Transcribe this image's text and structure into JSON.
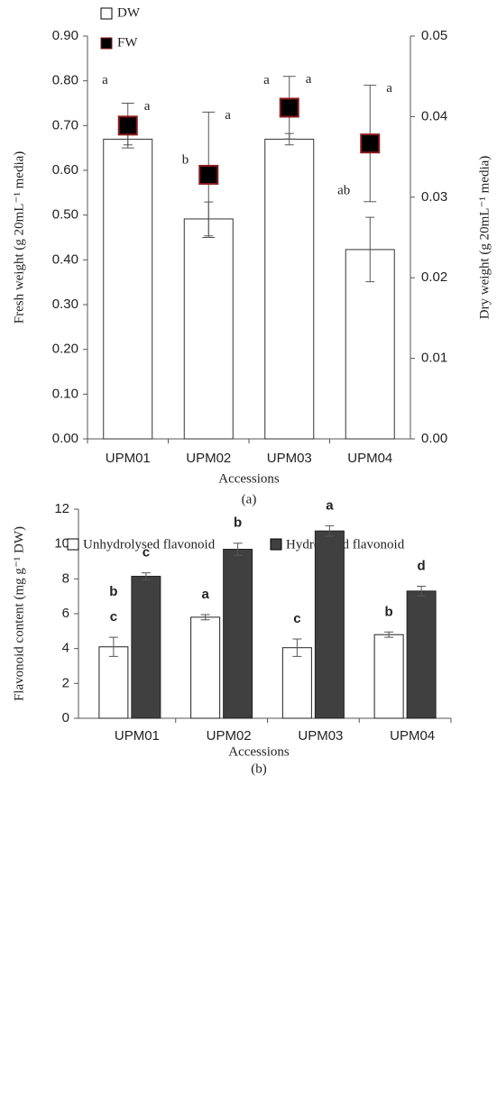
{
  "chart_data": [
    {
      "type": "bar",
      "caption": "(a)",
      "xlabel": "Accessions",
      "ylabel": "Fresh weight (g 20mL⁻¹ media)",
      "y2label": "Dry weight (g 20mL⁻¹ media)",
      "categories": [
        "UPM01",
        "UPM02",
        "UPM03",
        "UPM04"
      ],
      "ylim": [
        0,
        0.9
      ],
      "yticks": [
        {
          "value": 0,
          "label": "0.00"
        },
        {
          "value": 0.1,
          "label": "0.10"
        },
        {
          "value": 0.2,
          "label": "0.20"
        },
        {
          "value": 0.3,
          "label": "0.30"
        },
        {
          "value": 0.4,
          "label": "0.40"
        },
        {
          "value": 0.5,
          "label": "0.50"
        },
        {
          "value": 0.6,
          "label": "0.60"
        },
        {
          "value": 0.7,
          "label": "0.70"
        },
        {
          "value": 0.8,
          "label": "0.80"
        },
        {
          "value": 0.9,
          "label": "0.90"
        }
      ],
      "y2lim": [
        0,
        0.05
      ],
      "y2ticks": [
        {
          "value": 0,
          "label": "0.00"
        },
        0.01,
        0.02,
        0.03,
        0.04,
        0.05
      ],
      "legend": "top-left",
      "series": [
        {
          "name": "DW",
          "color": "#ffffff",
          "axis": "y2",
          "values": [
            0.0372,
            0.0273,
            0.0372,
            0.0235
          ],
          "errors": [
            0.0007,
            0.0021,
            0.0007,
            0.004
          ],
          "labels": [
            "a",
            "b",
            "a",
            "ab"
          ]
        },
        {
          "name": "FW",
          "color": "#000000",
          "edgecolor": "#8b1a1a",
          "marker": "square",
          "values": [
            0.7,
            0.59,
            0.74,
            0.66
          ],
          "errors": [
            0.05,
            0.14,
            0.07,
            0.13
          ],
          "labels": [
            "a",
            "a",
            "a",
            "a"
          ]
        }
      ]
    },
    {
      "type": "grouped-bar",
      "caption": "(b)",
      "xlabel": "Accessions",
      "ylabel": "Flavonoid content (mg g⁻¹ DW)",
      "categories": [
        "UPM01",
        "UPM02",
        "UPM03",
        "UPM04"
      ],
      "ylim": [
        0,
        12
      ],
      "yticks": [
        0,
        2,
        4,
        6,
        8,
        10,
        12
      ],
      "legend": "top",
      "series": [
        {
          "name": "Unhydrolysed flavonoid",
          "color": "#ffffff",
          "values": [
            4.1,
            5.8,
            4.05,
            4.8
          ],
          "errors": [
            0.55,
            0.15,
            0.5,
            0.15
          ],
          "labels": [
            [
              "b",
              "c"
            ],
            [
              "a"
            ],
            [
              "c"
            ],
            [
              "b"
            ]
          ]
        },
        {
          "name": "Hydrolysed flavonoid",
          "color": "#404040",
          "values": [
            8.15,
            9.7,
            10.75,
            7.3
          ],
          "errors": [
            0.2,
            0.35,
            0.3,
            0.28
          ],
          "labels": [
            [
              "c"
            ],
            [
              "b"
            ],
            [
              "a"
            ],
            [
              "d"
            ]
          ]
        }
      ]
    }
  ]
}
